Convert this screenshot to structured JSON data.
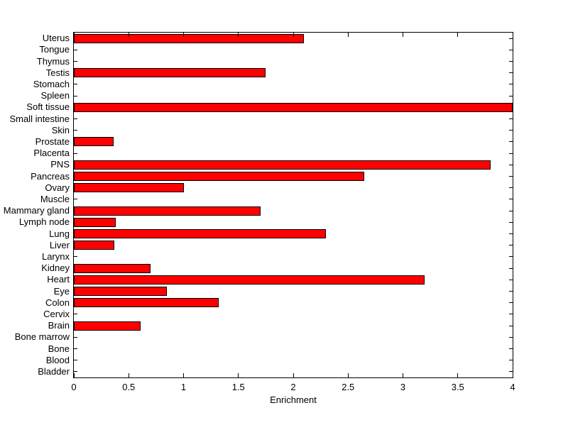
{
  "chart_data": {
    "type": "bar",
    "orientation": "horizontal",
    "title": "",
    "xlabel": "Enrichment",
    "ylabel": "",
    "xlim": [
      0,
      4
    ],
    "xticks": [
      0,
      0.5,
      1,
      1.5,
      2,
      2.5,
      3,
      3.5,
      4
    ],
    "xtick_labels": [
      "0",
      "0.5",
      "1",
      "1.5",
      "2",
      "2.5",
      "3",
      "3.5",
      "4"
    ],
    "grid": false,
    "legend": false,
    "bar_color": "#ff0000",
    "bar_edge_color": "#000000",
    "axis_color": "#000000",
    "background_color": "#ffffff",
    "categories_top_to_bottom": [
      "Uterus",
      "Tongue",
      "Thymus",
      "Testis",
      "Stomach",
      "Spleen",
      "Soft tissue",
      "Small intestine",
      "Skin",
      "Prostate",
      "Placenta",
      "PNS",
      "Pancreas",
      "Ovary",
      "Muscle",
      "Mammary gland",
      "Lymph node",
      "Lung",
      "Liver",
      "Larynx",
      "Kidney",
      "Heart",
      "Eye",
      "Colon",
      "Cervix",
      "Brain",
      "Bone marrow",
      "Bone",
      "Blood",
      "Bladder"
    ],
    "values": [
      2.1,
      0,
      0,
      1.75,
      0,
      0,
      4.0,
      0,
      0,
      0.36,
      0,
      3.8,
      2.65,
      1.0,
      0,
      1.7,
      0.38,
      2.3,
      0.37,
      0,
      0.7,
      3.2,
      0.85,
      1.32,
      0,
      0.61,
      0,
      0,
      0,
      0
    ]
  }
}
